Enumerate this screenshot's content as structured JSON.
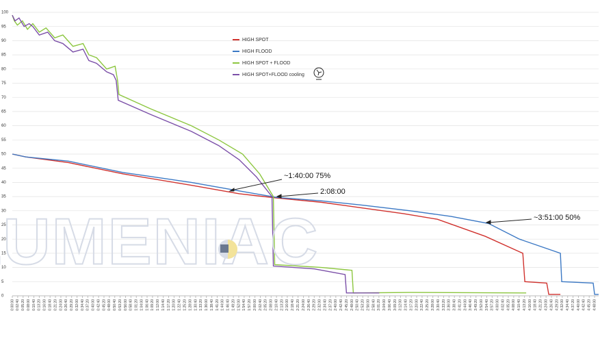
{
  "chart_data": {
    "type": "line",
    "watermark": "LUMENIAC",
    "annotations": [
      "~1:40:00 75%",
      "2:08:00",
      "~3:51:00 50%"
    ],
    "xlim": [
      0,
      17400
    ],
    "ylim": [
      0,
      100
    ],
    "yticks": [
      0,
      5,
      10,
      15,
      20,
      25,
      30,
      35,
      40,
      45,
      50,
      55,
      60,
      65,
      70,
      75,
      80,
      85,
      90,
      95,
      100
    ],
    "grid": true,
    "xticks": [
      {
        "value": 0,
        "label": "0:00:00"
      },
      {
        "value": 160,
        "label": "0:02:40"
      },
      {
        "value": 320,
        "label": "0:05:20"
      },
      {
        "value": 480,
        "label": "0:08:00"
      },
      {
        "value": 640,
        "label": "0:10:40"
      },
      {
        "value": 800,
        "label": "0:13:20"
      },
      {
        "value": 960,
        "label": "0:16:00"
      },
      {
        "value": 1120,
        "label": "0:18:40"
      },
      {
        "value": 1280,
        "label": "0:21:20"
      },
      {
        "value": 1440,
        "label": "0:24:00"
      },
      {
        "value": 1600,
        "label": "0:26:40"
      },
      {
        "value": 1760,
        "label": "0:29:20"
      },
      {
        "value": 1920,
        "label": "0:32:00"
      },
      {
        "value": 2080,
        "label": "0:34:40"
      },
      {
        "value": 2240,
        "label": "0:37:20"
      },
      {
        "value": 2400,
        "label": "0:40:00"
      },
      {
        "value": 2560,
        "label": "0:42:40"
      },
      {
        "value": 2720,
        "label": "0:45:20"
      },
      {
        "value": 2880,
        "label": "0:48:00"
      },
      {
        "value": 3040,
        "label": "0:50:40"
      },
      {
        "value": 3200,
        "label": "0:53:20"
      },
      {
        "value": 3360,
        "label": "0:56:00"
      },
      {
        "value": 3520,
        "label": "0:58:40"
      },
      {
        "value": 3680,
        "label": "1:01:20"
      },
      {
        "value": 3840,
        "label": "1:04:00"
      },
      {
        "value": 4000,
        "label": "1:06:40"
      },
      {
        "value": 4160,
        "label": "1:09:20"
      },
      {
        "value": 4320,
        "label": "1:12:00"
      },
      {
        "value": 4480,
        "label": "1:14:40"
      },
      {
        "value": 4640,
        "label": "1:17:20"
      },
      {
        "value": 4800,
        "label": "1:20:00"
      },
      {
        "value": 4960,
        "label": "1:22:40"
      },
      {
        "value": 5120,
        "label": "1:25:20"
      },
      {
        "value": 5280,
        "label": "1:28:00"
      },
      {
        "value": 5440,
        "label": "1:30:40"
      },
      {
        "value": 5600,
        "label": "1:33:20"
      },
      {
        "value": 5760,
        "label": "1:36:00"
      },
      {
        "value": 5920,
        "label": "1:38:40"
      },
      {
        "value": 6080,
        "label": "1:41:20"
      },
      {
        "value": 6240,
        "label": "1:44:00"
      },
      {
        "value": 6400,
        "label": "1:46:40"
      },
      {
        "value": 6560,
        "label": "1:49:20"
      },
      {
        "value": 6720,
        "label": "1:52:00"
      },
      {
        "value": 6880,
        "label": "1:54:40"
      },
      {
        "value": 7040,
        "label": "1:57:20"
      },
      {
        "value": 7200,
        "label": "2:00:00"
      },
      {
        "value": 7360,
        "label": "2:02:40"
      },
      {
        "value": 7520,
        "label": "2:05:20"
      },
      {
        "value": 7680,
        "label": "2:08:00"
      },
      {
        "value": 7840,
        "label": "2:10:40"
      },
      {
        "value": 8000,
        "label": "2:13:20"
      },
      {
        "value": 8160,
        "label": "2:16:00"
      },
      {
        "value": 8320,
        "label": "2:18:40"
      },
      {
        "value": 8480,
        "label": "2:21:20"
      },
      {
        "value": 8640,
        "label": "2:24:00"
      },
      {
        "value": 8800,
        "label": "2:26:40"
      },
      {
        "value": 8960,
        "label": "2:29:20"
      },
      {
        "value": 9120,
        "label": "2:32:00"
      },
      {
        "value": 9280,
        "label": "2:34:40"
      },
      {
        "value": 9440,
        "label": "2:37:20"
      },
      {
        "value": 9600,
        "label": "2:40:00"
      },
      {
        "value": 9760,
        "label": "2:42:40"
      },
      {
        "value": 9920,
        "label": "2:45:20"
      },
      {
        "value": 10080,
        "label": "2:48:00"
      },
      {
        "value": 10240,
        "label": "2:50:40"
      },
      {
        "value": 10400,
        "label": "2:53:20"
      },
      {
        "value": 10560,
        "label": "2:56:00"
      },
      {
        "value": 10720,
        "label": "2:58:40"
      },
      {
        "value": 10880,
        "label": "3:01:20"
      },
      {
        "value": 11040,
        "label": "3:04:00"
      },
      {
        "value": 11200,
        "label": "3:06:40"
      },
      {
        "value": 11360,
        "label": "3:09:20"
      },
      {
        "value": 11520,
        "label": "3:12:00"
      },
      {
        "value": 11680,
        "label": "3:14:40"
      },
      {
        "value": 11840,
        "label": "3:17:20"
      },
      {
        "value": 12000,
        "label": "3:20:00"
      },
      {
        "value": 12160,
        "label": "3:22:40"
      },
      {
        "value": 12320,
        "label": "3:25:20"
      },
      {
        "value": 12480,
        "label": "3:28:00"
      },
      {
        "value": 12640,
        "label": "3:30:40"
      },
      {
        "value": 12800,
        "label": "3:33:20"
      },
      {
        "value": 12960,
        "label": "3:36:00"
      },
      {
        "value": 13120,
        "label": "3:38:40"
      },
      {
        "value": 13280,
        "label": "3:41:20"
      },
      {
        "value": 13440,
        "label": "3:44:00"
      },
      {
        "value": 13600,
        "label": "3:46:40"
      },
      {
        "value": 13760,
        "label": "3:49:20"
      },
      {
        "value": 13920,
        "label": "3:52:00"
      },
      {
        "value": 14080,
        "label": "3:54:40"
      },
      {
        "value": 14240,
        "label": "3:57:20"
      },
      {
        "value": 14400,
        "label": "4:00:00"
      },
      {
        "value": 14560,
        "label": "4:02:40"
      },
      {
        "value": 14720,
        "label": "4:05:20"
      },
      {
        "value": 14880,
        "label": "4:08:00"
      },
      {
        "value": 15040,
        "label": "4:10:40"
      },
      {
        "value": 15200,
        "label": "4:13:20"
      },
      {
        "value": 15360,
        "label": "4:16:00"
      },
      {
        "value": 15520,
        "label": "4:18:40"
      },
      {
        "value": 15680,
        "label": "4:21:20"
      },
      {
        "value": 15840,
        "label": "4:24:00"
      },
      {
        "value": 16000,
        "label": "4:26:40"
      },
      {
        "value": 16160,
        "label": "4:29:20"
      },
      {
        "value": 16320,
        "label": "4:32:00"
      },
      {
        "value": 16480,
        "label": "4:34:40"
      },
      {
        "value": 16640,
        "label": "4:37:20"
      },
      {
        "value": 16800,
        "label": "4:40:00"
      },
      {
        "value": 16960,
        "label": "4:42:40"
      },
      {
        "value": 17120,
        "label": "4:45:20"
      },
      {
        "value": 17280,
        "label": "4:48:00"
      }
    ],
    "series": [
      {
        "name": "HIGH SPOT",
        "color": "#d0312d",
        "x": [
          0,
          400,
          1663,
          3285,
          5313,
          6733,
          7850,
          9167,
          10384,
          11600,
          12614,
          14033,
          15150,
          15210,
          15860,
          15920,
          16265
        ],
        "values": [
          50,
          49,
          47,
          43,
          39,
          36,
          34.5,
          33,
          31,
          29,
          27,
          21,
          15,
          5,
          4.5,
          0.5,
          0.5
        ]
      },
      {
        "name": "HIGH FLOOD",
        "color": "#3b78c4",
        "x": [
          0,
          400,
          1663,
          3285,
          5313,
          6733,
          7850,
          9167,
          10384,
          11803,
          13020,
          14135,
          15048,
          16265,
          16305,
          17238,
          17280,
          17400
        ],
        "values": [
          50,
          49,
          47.5,
          43.5,
          40,
          37,
          34.7,
          33.5,
          32,
          30,
          28,
          25.5,
          20,
          15,
          5,
          4.5,
          0.5,
          0.5
        ]
      },
      {
        "name": "HIGH SPOT + FLOOD",
        "color": "#8cc63f",
        "x": [
          0,
          60,
          150,
          300,
          450,
          608,
          800,
          1000,
          1257,
          1500,
          1800,
          2100,
          2271,
          2500,
          2800,
          3050,
          3123,
          3163,
          4096,
          5313,
          6125,
          6834,
          7341,
          7747,
          7787,
          9167,
          10079,
          10120,
          11803,
          15250
        ],
        "values": [
          99,
          97,
          95.5,
          97,
          94,
          96,
          93,
          94.5,
          91,
          92,
          88,
          89,
          85,
          84,
          80,
          81,
          76,
          71,
          66,
          60,
          55,
          50,
          43,
          35,
          11,
          10,
          9,
          1,
          1.2,
          1
        ]
      },
      {
        "name": "HIGH SPOT+FLOOD cooling",
        "color": "#7b4fa8",
        "x": [
          0,
          80,
          200,
          350,
          500,
          608,
          800,
          1050,
          1257,
          1500,
          1800,
          2100,
          2271,
          2500,
          2800,
          3000,
          3082,
          3143,
          4096,
          5313,
          6125,
          6733,
          7240,
          7706,
          7747,
          8964,
          9876,
          9916,
          10891
        ],
        "values": [
          99,
          97,
          98,
          95,
          96,
          95,
          92,
          93,
          90,
          89,
          86,
          87,
          83,
          82,
          79,
          78,
          76,
          69,
          64,
          58,
          53,
          48,
          42,
          35,
          10.5,
          9.5,
          7.5,
          1,
          1
        ]
      }
    ]
  }
}
